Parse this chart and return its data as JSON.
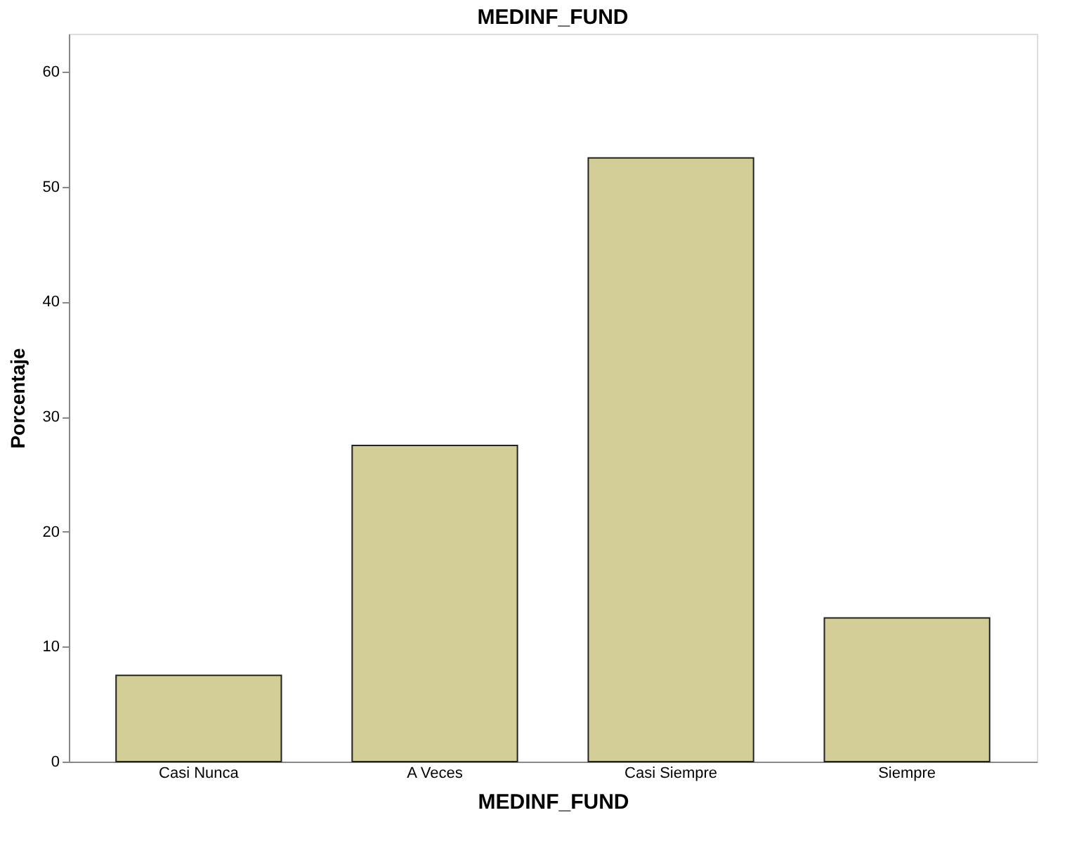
{
  "chart_data": {
    "type": "bar",
    "title": "MEDINF_FUND",
    "xlabel": "MEDINF_FUND",
    "ylabel": "Porcentaje",
    "categories": [
      "Casi Nunca",
      "A Veces",
      "Casi Siempre",
      "Siempre"
    ],
    "values": [
      7.5,
      27.5,
      52.5,
      12.5
    ],
    "color": "#d3ce97",
    "ylim": [
      0,
      63.3
    ],
    "yticks": [
      0,
      10,
      20,
      30,
      40,
      50,
      60
    ]
  }
}
